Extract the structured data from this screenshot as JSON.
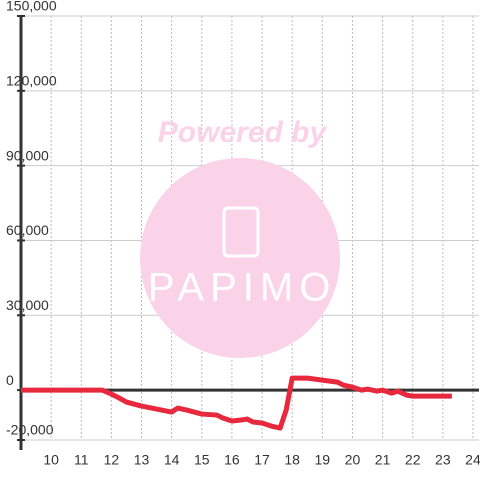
{
  "chart_data": {
    "type": "line",
    "watermark": {
      "top": "Powered by",
      "logo": "PAPIMO"
    },
    "x": [
      9.0,
      11.7,
      12.0,
      12.2,
      12.5,
      13.0,
      13.5,
      14.0,
      14.2,
      14.5,
      15.0,
      15.5,
      15.7,
      16.0,
      16.3,
      16.5,
      16.7,
      17.0,
      17.3,
      17.6,
      17.8,
      18.0,
      18.5,
      19.0,
      19.5,
      19.7,
      20.0,
      20.3,
      20.5,
      20.8,
      21.0,
      21.3,
      21.5,
      21.8,
      22.0,
      23.3
    ],
    "series": [
      {
        "color": "#e8283c",
        "values": [
          0,
          0,
          -1600,
          -2800,
          -4800,
          -6400,
          -7600,
          -8800,
          -7200,
          -8000,
          -9600,
          -10000,
          -11200,
          -12400,
          -12000,
          -11600,
          -12800,
          -13200,
          -14400,
          -15200,
          -8000,
          4800,
          4800,
          4000,
          3200,
          2000,
          1200,
          0,
          400,
          -400,
          0,
          -1200,
          -400,
          -2000,
          -2400,
          -2400
        ]
      }
    ],
    "xlim": [
      9.0,
      24.2
    ],
    "xticks": [
      10,
      11,
      12,
      13,
      14,
      15,
      16,
      17,
      18,
      19,
      20,
      21,
      22,
      23,
      24
    ],
    "ylim": [
      -20000,
      150000
    ],
    "yticks": [
      {
        "value": -20000,
        "label": "-20,000"
      },
      {
        "value": 0,
        "label": "0"
      },
      {
        "value": 30000,
        "label": "30,000"
      },
      {
        "value": 60000,
        "label": "60,000"
      },
      {
        "value": 90000,
        "label": "90,000"
      },
      {
        "value": 120000,
        "label": "120,000"
      },
      {
        "value": 150000,
        "label": "150,000"
      }
    ],
    "grid": true
  }
}
